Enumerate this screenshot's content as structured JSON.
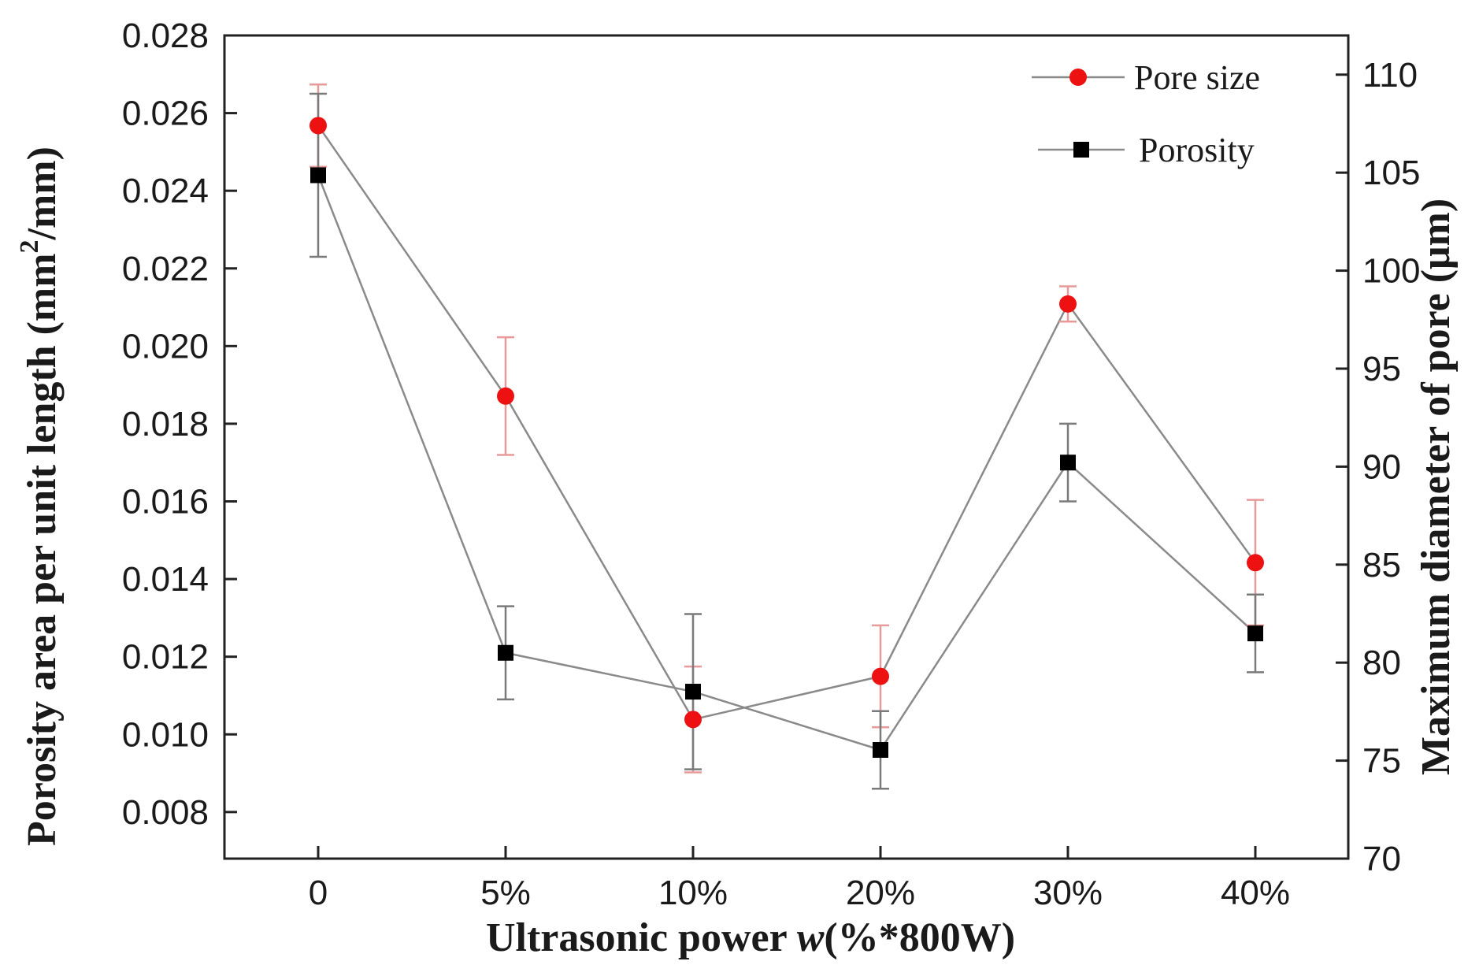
{
  "chart_data": {
    "type": "line",
    "categories": [
      "0",
      "5%",
      "10%",
      "20%",
      "30%",
      "40%"
    ],
    "xlabel": "Ultrasonic power w(%*800W)",
    "xlabel_parts": {
      "pre": "Ultrasonic power ",
      "italic": "w",
      "post": "(%*800W)"
    },
    "ylabel_left": "Porosity area per unit length (mm2/mm)",
    "ylabel_left_parts": {
      "pre": "Porosity area per unit length (mm",
      "sup": "2",
      "post": "/mm)"
    },
    "ylabel_right": "Maximum diameter of pore (μm)",
    "ylim_left": [
      0.0068,
      0.028
    ],
    "ylim_right": [
      70,
      112
    ],
    "yticks_left": [
      0.008,
      0.01,
      0.012,
      0.014,
      0.016,
      0.018,
      0.02,
      0.022,
      0.024,
      0.026,
      0.028
    ],
    "yticks_left_labels": [
      "0.008",
      "0.010",
      "0.012",
      "0.014",
      "0.016",
      "0.018",
      "0.020",
      "0.022",
      "0.024",
      "0.026",
      "0.028"
    ],
    "yticks_right": [
      70,
      75,
      80,
      85,
      90,
      95,
      100,
      105,
      110
    ],
    "yticks_right_labels": [
      "70",
      "75",
      "80",
      "85",
      "90",
      "95",
      "100",
      "105",
      "110"
    ],
    "legend_position": "top-right",
    "series": [
      {
        "name": "Pore size",
        "axis": "right",
        "color": "#ee1111",
        "errorbar_color": "#e89a9a",
        "marker": "circle",
        "values": [
          107.4,
          93.6,
          77.1,
          79.3,
          98.3,
          85.1
        ],
        "errors": [
          2.1,
          3.0,
          2.7,
          2.6,
          0.9,
          3.2
        ]
      },
      {
        "name": "Porosity",
        "axis": "left",
        "color": "#000000",
        "errorbar_color": "#7a7a7a",
        "marker": "square",
        "values": [
          0.0244,
          0.0121,
          0.0111,
          0.0096,
          0.017,
          0.0126
        ],
        "errors": [
          0.0021,
          0.0012,
          0.002,
          0.001,
          0.001,
          0.001
        ]
      }
    ]
  }
}
